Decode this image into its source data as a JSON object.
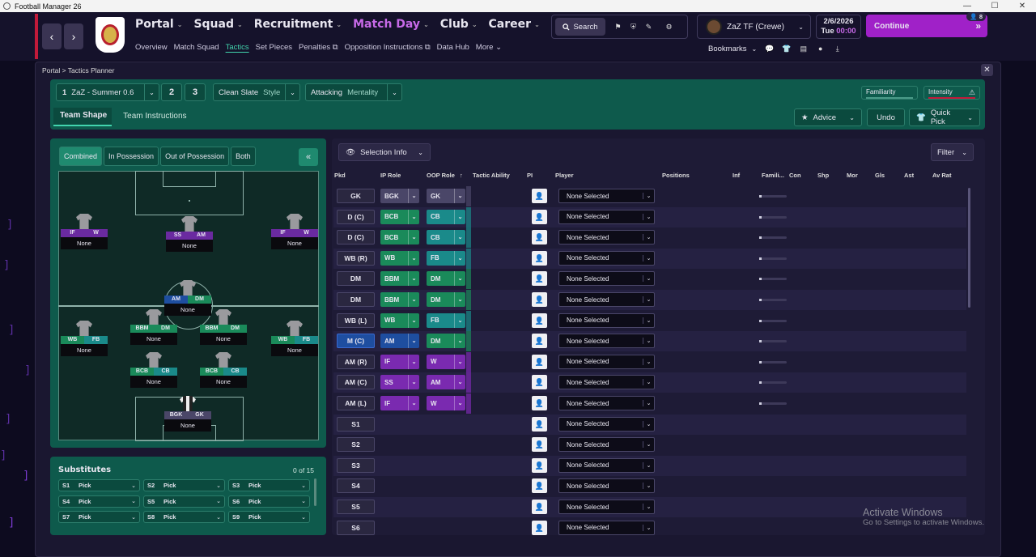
{
  "window": {
    "title": "Football Manager 26",
    "min": "—",
    "max": "☐",
    "close": "✕"
  },
  "nav": {
    "back": "‹",
    "forward": "›",
    "menu": [
      "Portal",
      "Squad",
      "Recruitment",
      "Match Day",
      "Club",
      "Career"
    ],
    "active_menu": "Match Day",
    "submenu": [
      "Overview",
      "Match Squad",
      "Tactics",
      "Set Pieces",
      "Penalties",
      "Opposition Instructions",
      "Data Hub",
      "More"
    ],
    "active_submenu": "Tactics",
    "search": "Search",
    "manager": "ZaZ TF (Crewe)",
    "date": "2/6/2026",
    "day": "Tue",
    "time": "00:00",
    "continue": "Continue",
    "inbox_count": "8",
    "bookmarks": "Bookmarks"
  },
  "breadcrumb": {
    "root": "Portal",
    "sep": ">",
    "current": "Tactics Planner"
  },
  "close": "✕",
  "tactic": {
    "slot_num": "1",
    "name": "ZaZ - Summer 0.6",
    "slot2": "2",
    "slot3": "3",
    "style_value": "Clean Slate",
    "style_label": "Style",
    "mentality_value": "Attacking",
    "mentality_label": "Mentality",
    "familiarity": "Familiarity",
    "intensity": "Intensity",
    "intensity_icon": "⚠"
  },
  "tabs": {
    "team_shape": "Team Shape",
    "team_instructions": "Team Instructions"
  },
  "actions": {
    "advice": "Advice",
    "undo": "Undo",
    "quick_pick": "Quick Pick"
  },
  "phases": [
    "Combined",
    "In Possession",
    "Out of Possession",
    "Both"
  ],
  "collapse": "«",
  "pitch_players": [
    {
      "ip": "IF",
      "oop": "W",
      "name": "None",
      "ip_color": "#6a2aa0",
      "oop_color": "#6a2aa0"
    },
    {
      "ip": "SS",
      "oop": "AM",
      "name": "None",
      "ip_color": "#6a2aa0",
      "oop_color": "#6a2aa0"
    },
    {
      "ip": "IF",
      "oop": "W",
      "name": "None",
      "ip_color": "#6a2aa0",
      "oop_color": "#6a2aa0"
    },
    {
      "ip": "AM",
      "oop": "DM",
      "name": "None",
      "ip_color": "#1e4ea0",
      "oop_color": "#1a8a5a"
    },
    {
      "ip": "WB",
      "oop": "FB",
      "name": "None",
      "ip_color": "#1a8a5a",
      "oop_color": "#1a8a8a"
    },
    {
      "ip": "BBM",
      "oop": "DM",
      "name": "None",
      "ip_color": "#1a8a5a",
      "oop_color": "#1a8a5a"
    },
    {
      "ip": "BBM",
      "oop": "DM",
      "name": "None",
      "ip_color": "#1a8a5a",
      "oop_color": "#1a8a5a"
    },
    {
      "ip": "WB",
      "oop": "FB",
      "name": "None",
      "ip_color": "#1a8a5a",
      "oop_color": "#1a8a8a"
    },
    {
      "ip": "BCB",
      "oop": "CB",
      "name": "None",
      "ip_color": "#1a8a5a",
      "oop_color": "#1a8a8a"
    },
    {
      "ip": "BCB",
      "oop": "CB",
      "name": "None",
      "ip_color": "#1a8a5a",
      "oop_color": "#1a8a8a"
    },
    {
      "ip": "BGK",
      "oop": "GK",
      "name": "None",
      "ip_color": "#4a4668",
      "oop_color": "#4a4668"
    }
  ],
  "substitutes": {
    "title": "Substitutes",
    "count": "0 of 15",
    "slots": [
      {
        "code": "S1",
        "value": "Pick"
      },
      {
        "code": "S2",
        "value": "Pick"
      },
      {
        "code": "S3",
        "value": "Pick"
      },
      {
        "code": "S4",
        "value": "Pick"
      },
      {
        "code": "S5",
        "value": "Pick"
      },
      {
        "code": "S6",
        "value": "Pick"
      },
      {
        "code": "S7",
        "value": "Pick"
      },
      {
        "code": "S8",
        "value": "Pick"
      },
      {
        "code": "S9",
        "value": "Pick"
      }
    ]
  },
  "selection": {
    "view": "Selection Info",
    "filter": "Filter",
    "columns": [
      "Pkd",
      "IP Role",
      "OOP Role",
      "Tactic Ability",
      "PI",
      "Player",
      "Positions",
      "Inf",
      "Famili...",
      "Con",
      "Shp",
      "Mor",
      "Gls",
      "Ast",
      "Av Rat"
    ],
    "rows": [
      {
        "pos": "GK",
        "ip": "BGK",
        "oop": "GK",
        "ip_color": "#4a4668",
        "oop_color": "#4a4668",
        "player": "None Selected"
      },
      {
        "pos": "D (C)",
        "ip": "BCB",
        "oop": "CB",
        "ip_color": "#1a8a5a",
        "oop_color": "#1a8a8a",
        "player": "None Selected"
      },
      {
        "pos": "D (C)",
        "ip": "BCB",
        "oop": "CB",
        "ip_color": "#1a8a5a",
        "oop_color": "#1a8a8a",
        "player": "None Selected"
      },
      {
        "pos": "WB (R)",
        "ip": "WB",
        "oop": "FB",
        "ip_color": "#1a8a5a",
        "oop_color": "#1a8a8a",
        "player": "None Selected"
      },
      {
        "pos": "DM",
        "ip": "BBM",
        "oop": "DM",
        "ip_color": "#1a8a5a",
        "oop_color": "#1a8a5a",
        "player": "None Selected"
      },
      {
        "pos": "DM",
        "ip": "BBM",
        "oop": "DM",
        "ip_color": "#1a8a5a",
        "oop_color": "#1a8a5a",
        "player": "None Selected"
      },
      {
        "pos": "WB (L)",
        "ip": "WB",
        "oop": "FB",
        "ip_color": "#1a8a5a",
        "oop_color": "#1a8a8a",
        "player": "None Selected"
      },
      {
        "pos": "M (C)",
        "ip": "AM",
        "oop": "DM",
        "ip_color": "#1e4ea0",
        "oop_color": "#1a8a5a",
        "player": "None Selected"
      },
      {
        "pos": "AM (R)",
        "ip": "IF",
        "oop": "W",
        "ip_color": "#7a2ab0",
        "oop_color": "#7a2ab0",
        "player": "None Selected"
      },
      {
        "pos": "AM (C)",
        "ip": "SS",
        "oop": "AM",
        "ip_color": "#7a2ab0",
        "oop_color": "#7a2ab0",
        "player": "None Selected"
      },
      {
        "pos": "AM (L)",
        "ip": "IF",
        "oop": "W",
        "ip_color": "#7a2ab0",
        "oop_color": "#7a2ab0",
        "player": "None Selected"
      },
      {
        "pos": "S1",
        "player": "None Selected"
      },
      {
        "pos": "S2",
        "player": "None Selected"
      },
      {
        "pos": "S3",
        "player": "None Selected"
      },
      {
        "pos": "S4",
        "player": "None Selected"
      },
      {
        "pos": "S5",
        "player": "None Selected"
      },
      {
        "pos": "S6",
        "player": "None Selected"
      }
    ]
  },
  "watermark": {
    "line1": "Activate Windows",
    "line2": "Go to Settings to activate Windows."
  },
  "colors": {
    "accent_green": "#42d4ad",
    "accent_purple": "#a021c8",
    "panel_green": "#0e5a4c"
  }
}
